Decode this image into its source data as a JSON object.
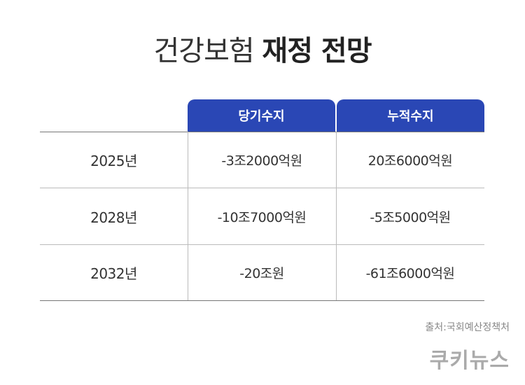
{
  "title": {
    "normal": "건강보험",
    "bold": "재정 전망"
  },
  "table": {
    "headers": [
      "당기수지",
      "누적수지"
    ],
    "rows": [
      {
        "year": "2025년",
        "current": "-3조2000억원",
        "cumulative": "20조6000억원"
      },
      {
        "year": "2028년",
        "current": "-10조7000억원",
        "cumulative": "-5조5000억원"
      },
      {
        "year": "2032년",
        "current": "-20조원",
        "cumulative": "-61조6000억원"
      }
    ]
  },
  "source": "출처:국회예산정책처",
  "logo": "쿠키뉴스",
  "colors": {
    "header_bg": "#2a47b5",
    "header_text": "#ffffff"
  }
}
